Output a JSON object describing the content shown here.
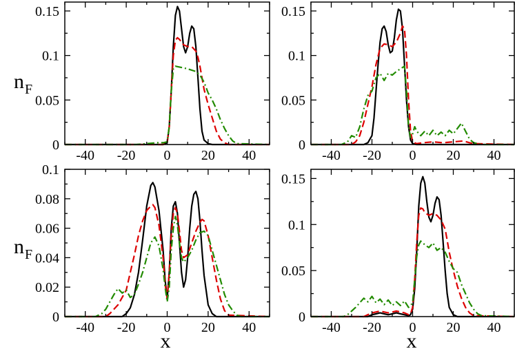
{
  "figure": {
    "ylabel_main": "n",
    "ylabel_sub": "F",
    "xlabel": "x"
  },
  "colors": {
    "black": "#000000",
    "red": "#dd0000",
    "green": "#228b00"
  },
  "chart_data": [
    {
      "type": "line",
      "xlim": [
        -50,
        50
      ],
      "ylim": [
        0,
        0.16
      ],
      "xticks": [
        -40,
        -20,
        0,
        20,
        40
      ],
      "yticks": [
        0,
        0.05,
        0.1,
        0.15
      ],
      "ytick_labels": [
        "0",
        "0.05",
        "0.1",
        "0.15"
      ],
      "ylabel": "nF",
      "xlabel": "",
      "series": [
        {
          "style": "solid",
          "color": "#000000",
          "x": [
            -50,
            -2,
            0,
            1,
            2,
            3,
            4,
            5,
            6,
            7,
            8,
            9,
            10,
            11,
            12,
            13,
            14,
            15,
            16,
            17,
            18,
            20,
            22,
            50
          ],
          "y": [
            0,
            0,
            0.002,
            0.02,
            0.06,
            0.11,
            0.145,
            0.155,
            0.15,
            0.13,
            0.11,
            0.103,
            0.11,
            0.125,
            0.133,
            0.13,
            0.11,
            0.075,
            0.04,
            0.015,
            0.005,
            0.001,
            0,
            0
          ]
        },
        {
          "style": "dash",
          "color": "#dd0000",
          "x": [
            -50,
            -2,
            0,
            1,
            2,
            3,
            4,
            5,
            6,
            8,
            10,
            12,
            14,
            15,
            16,
            17,
            18,
            20,
            22,
            24,
            26,
            28,
            30,
            50
          ],
          "y": [
            0,
            0,
            0.002,
            0.02,
            0.06,
            0.1,
            0.117,
            0.12,
            0.118,
            0.112,
            0.11,
            0.11,
            0.105,
            0.098,
            0.088,
            0.075,
            0.062,
            0.045,
            0.03,
            0.015,
            0.006,
            0.002,
            0,
            0
          ]
        },
        {
          "style": "dashdot",
          "color": "#228b00",
          "x": [
            -50,
            -15,
            -10,
            -5,
            -2,
            0,
            1,
            2,
            3,
            4,
            6,
            10,
            14,
            16,
            18,
            20,
            22,
            24,
            26,
            28,
            30,
            32,
            34,
            50
          ],
          "y": [
            0,
            0,
            0.001,
            0.002,
            0.002,
            0.003,
            0.02,
            0.06,
            0.085,
            0.088,
            0.087,
            0.085,
            0.082,
            0.078,
            0.07,
            0.058,
            0.05,
            0.04,
            0.028,
            0.018,
            0.01,
            0.004,
            0.001,
            0
          ]
        }
      ]
    },
    {
      "type": "line",
      "xlim": [
        -50,
        50
      ],
      "ylim": [
        0,
        0.16
      ],
      "xticks": [
        -40,
        -20,
        0,
        20,
        40
      ],
      "yticks": [
        0,
        0.05,
        0.1,
        0.15
      ],
      "ytick_labels": [
        "0",
        "0.05",
        "0.1",
        "0.15"
      ],
      "xlabel": "",
      "series": [
        {
          "style": "solid",
          "color": "#000000",
          "x": [
            -50,
            -24,
            -22,
            -20,
            -19,
            -18,
            -17,
            -16,
            -15,
            -14,
            -13,
            -12,
            -11,
            -10,
            -9,
            -8,
            -7,
            -6,
            -5,
            -4,
            -3,
            -2,
            -1,
            0,
            2,
            50
          ],
          "y": [
            0,
            0,
            0.002,
            0.01,
            0.03,
            0.06,
            0.09,
            0.115,
            0.13,
            0.133,
            0.127,
            0.112,
            0.103,
            0.105,
            0.12,
            0.14,
            0.152,
            0.15,
            0.13,
            0.09,
            0.05,
            0.02,
            0.005,
            0.001,
            0,
            0
          ]
        },
        {
          "style": "dash",
          "color": "#dd0000",
          "x": [
            -50,
            -30,
            -28,
            -26,
            -24,
            -22,
            -20,
            -18,
            -16,
            -14,
            -12,
            -10,
            -8,
            -6,
            -5,
            -4,
            -3,
            -2,
            -1,
            0,
            2,
            5,
            10,
            15,
            20,
            25,
            28,
            30,
            50
          ],
          "y": [
            0,
            0,
            0.003,
            0.01,
            0.025,
            0.045,
            0.065,
            0.09,
            0.108,
            0.113,
            0.112,
            0.11,
            0.115,
            0.125,
            0.133,
            0.13,
            0.1,
            0.05,
            0.015,
            0.003,
            0.001,
            0.002,
            0.003,
            0.002,
            0.003,
            0.004,
            0.002,
            0.001,
            0
          ]
        },
        {
          "style": "dashdot",
          "color": "#228b00",
          "x": [
            -50,
            -35,
            -32,
            -30,
            -28,
            -26,
            -24,
            -22,
            -20,
            -18,
            -16,
            -14,
            -12,
            -10,
            -8,
            -6,
            -4,
            -3,
            -2,
            -1,
            0,
            1,
            2,
            4,
            6,
            8,
            10,
            12,
            14,
            16,
            18,
            20,
            22,
            24,
            26,
            28,
            30,
            34,
            50
          ],
          "y": [
            0,
            0,
            0.003,
            0.01,
            0.008,
            0.02,
            0.04,
            0.055,
            0.06,
            0.075,
            0.08,
            0.072,
            0.08,
            0.078,
            0.082,
            0.085,
            0.088,
            0.06,
            0.02,
            0.008,
            0.012,
            0.02,
            0.015,
            0.01,
            0.015,
            0.01,
            0.016,
            0.01,
            0.014,
            0.01,
            0.016,
            0.012,
            0.018,
            0.024,
            0.015,
            0.006,
            0.002,
            0,
            0
          ]
        }
      ]
    },
    {
      "type": "line",
      "xlim": [
        -50,
        50
      ],
      "ylim": [
        0,
        0.1
      ],
      "xticks": [
        -40,
        -20,
        0,
        20,
        40
      ],
      "yticks": [
        0,
        0.02,
        0.04,
        0.06,
        0.08,
        0.1
      ],
      "ytick_labels": [
        "0",
        "0.02",
        "0.04",
        "0.06",
        "0.08",
        "0.1"
      ],
      "ylabel": "nF",
      "xlabel": "x",
      "series": [
        {
          "style": "solid",
          "color": "#000000",
          "x": [
            -50,
            -22,
            -20,
            -18,
            -16,
            -14,
            -12,
            -10,
            -8,
            -7,
            -6,
            -4,
            -2,
            -1,
            0,
            1,
            2,
            3,
            4,
            5,
            6,
            7,
            8,
            9,
            10,
            11,
            12,
            13,
            14,
            15,
            16,
            17,
            18,
            20,
            22,
            24,
            50
          ],
          "y": [
            0,
            0,
            0.002,
            0.006,
            0.015,
            0.03,
            0.052,
            0.075,
            0.089,
            0.091,
            0.088,
            0.072,
            0.045,
            0.025,
            0.012,
            0.03,
            0.06,
            0.075,
            0.078,
            0.07,
            0.05,
            0.03,
            0.02,
            0.025,
            0.04,
            0.06,
            0.075,
            0.083,
            0.085,
            0.08,
            0.065,
            0.045,
            0.028,
            0.008,
            0.002,
            0,
            0
          ]
        },
        {
          "style": "dash",
          "color": "#dd0000",
          "x": [
            -50,
            -30,
            -28,
            -26,
            -24,
            -22,
            -20,
            -18,
            -16,
            -14,
            -12,
            -10,
            -8,
            -7,
            -6,
            -4,
            -2,
            -1,
            0,
            1,
            2,
            3,
            4,
            5,
            6,
            7,
            8,
            10,
            12,
            14,
            16,
            17,
            18,
            20,
            22,
            24,
            26,
            28,
            30,
            50
          ],
          "y": [
            0,
            0,
            0.002,
            0.005,
            0.008,
            0.013,
            0.018,
            0.03,
            0.042,
            0.055,
            0.065,
            0.072,
            0.075,
            0.076,
            0.074,
            0.062,
            0.04,
            0.022,
            0.012,
            0.03,
            0.055,
            0.07,
            0.074,
            0.07,
            0.058,
            0.045,
            0.04,
            0.042,
            0.05,
            0.058,
            0.064,
            0.066,
            0.065,
            0.055,
            0.04,
            0.025,
            0.012,
            0.004,
            0.001,
            0
          ]
        },
        {
          "style": "dashdot",
          "color": "#228b00",
          "x": [
            -50,
            -35,
            -32,
            -30,
            -28,
            -26,
            -24,
            -22,
            -20,
            -18,
            -16,
            -14,
            -12,
            -10,
            -8,
            -6,
            -4,
            -2,
            -1,
            0,
            1,
            2,
            3,
            4,
            5,
            6,
            7,
            8,
            10,
            12,
            14,
            16,
            18,
            20,
            22,
            24,
            26,
            28,
            30,
            32,
            34,
            36,
            50
          ],
          "y": [
            0,
            0,
            0.002,
            0.005,
            0.01,
            0.015,
            0.019,
            0.016,
            0.018,
            0.013,
            0.015,
            0.022,
            0.03,
            0.04,
            0.05,
            0.054,
            0.048,
            0.032,
            0.02,
            0.01,
            0.02,
            0.045,
            0.06,
            0.068,
            0.062,
            0.05,
            0.04,
            0.037,
            0.04,
            0.045,
            0.052,
            0.057,
            0.058,
            0.055,
            0.045,
            0.035,
            0.025,
            0.015,
            0.008,
            0.004,
            0.001,
            0,
            0
          ]
        }
      ]
    },
    {
      "type": "line",
      "xlim": [
        -50,
        50
      ],
      "ylim": [
        0,
        0.16
      ],
      "xticks": [
        -40,
        -20,
        0,
        20,
        40
      ],
      "yticks": [
        0,
        0.05,
        0.1,
        0.15
      ],
      "ytick_labels": [
        "0",
        "0.05",
        "0.1",
        "0.15"
      ],
      "xlabel": "x",
      "series": [
        {
          "style": "solid",
          "color": "#000000",
          "x": [
            -50,
            -22,
            -20,
            -18,
            -16,
            -14,
            -12,
            -10,
            -8,
            -6,
            -4,
            -2,
            -1,
            0,
            1,
            2,
            3,
            4,
            5,
            6,
            7,
            8,
            9,
            10,
            11,
            12,
            13,
            14,
            15,
            16,
            17,
            18,
            20,
            22,
            50
          ],
          "y": [
            0,
            0,
            0.002,
            0.003,
            0.004,
            0.003,
            0.002,
            0.003,
            0.004,
            0.003,
            0.002,
            0.001,
            0.002,
            0.008,
            0.03,
            0.07,
            0.12,
            0.145,
            0.152,
            0.145,
            0.125,
            0.108,
            0.103,
            0.11,
            0.123,
            0.13,
            0.127,
            0.11,
            0.08,
            0.05,
            0.025,
            0.01,
            0.002,
            0,
            0
          ]
        },
        {
          "style": "dash",
          "color": "#dd0000",
          "x": [
            -50,
            -24,
            -22,
            -20,
            -18,
            -16,
            -14,
            -12,
            -10,
            -8,
            -6,
            -4,
            -2,
            -1,
            0,
            1,
            2,
            3,
            4,
            5,
            6,
            8,
            10,
            12,
            14,
            16,
            17,
            18,
            20,
            22,
            24,
            26,
            28,
            30,
            50
          ],
          "y": [
            0,
            0,
            0.002,
            0.004,
            0.005,
            0.006,
            0.005,
            0.004,
            0.005,
            0.006,
            0.005,
            0.004,
            0.002,
            0.003,
            0.01,
            0.04,
            0.08,
            0.11,
            0.118,
            0.117,
            0.113,
            0.11,
            0.112,
            0.11,
            0.105,
            0.095,
            0.083,
            0.07,
            0.05,
            0.033,
            0.02,
            0.01,
            0.004,
            0.001,
            0
          ]
        },
        {
          "style": "dashdot",
          "color": "#228b00",
          "x": [
            -50,
            -34,
            -32,
            -30,
            -28,
            -26,
            -24,
            -22,
            -20,
            -18,
            -16,
            -14,
            -12,
            -10,
            -8,
            -6,
            -4,
            -2,
            -1,
            0,
            1,
            2,
            3,
            4,
            5,
            6,
            8,
            10,
            12,
            14,
            16,
            18,
            20,
            22,
            24,
            26,
            28,
            30,
            32,
            34,
            50
          ],
          "y": [
            0,
            0,
            0.002,
            0.006,
            0.01,
            0.015,
            0.02,
            0.016,
            0.022,
            0.015,
            0.019,
            0.013,
            0.018,
            0.012,
            0.016,
            0.012,
            0.017,
            0.01,
            0.012,
            0.015,
            0.04,
            0.065,
            0.078,
            0.082,
            0.08,
            0.078,
            0.075,
            0.08,
            0.072,
            0.075,
            0.07,
            0.06,
            0.052,
            0.048,
            0.035,
            0.025,
            0.015,
            0.008,
            0.003,
            0.001,
            0
          ]
        }
      ]
    }
  ]
}
